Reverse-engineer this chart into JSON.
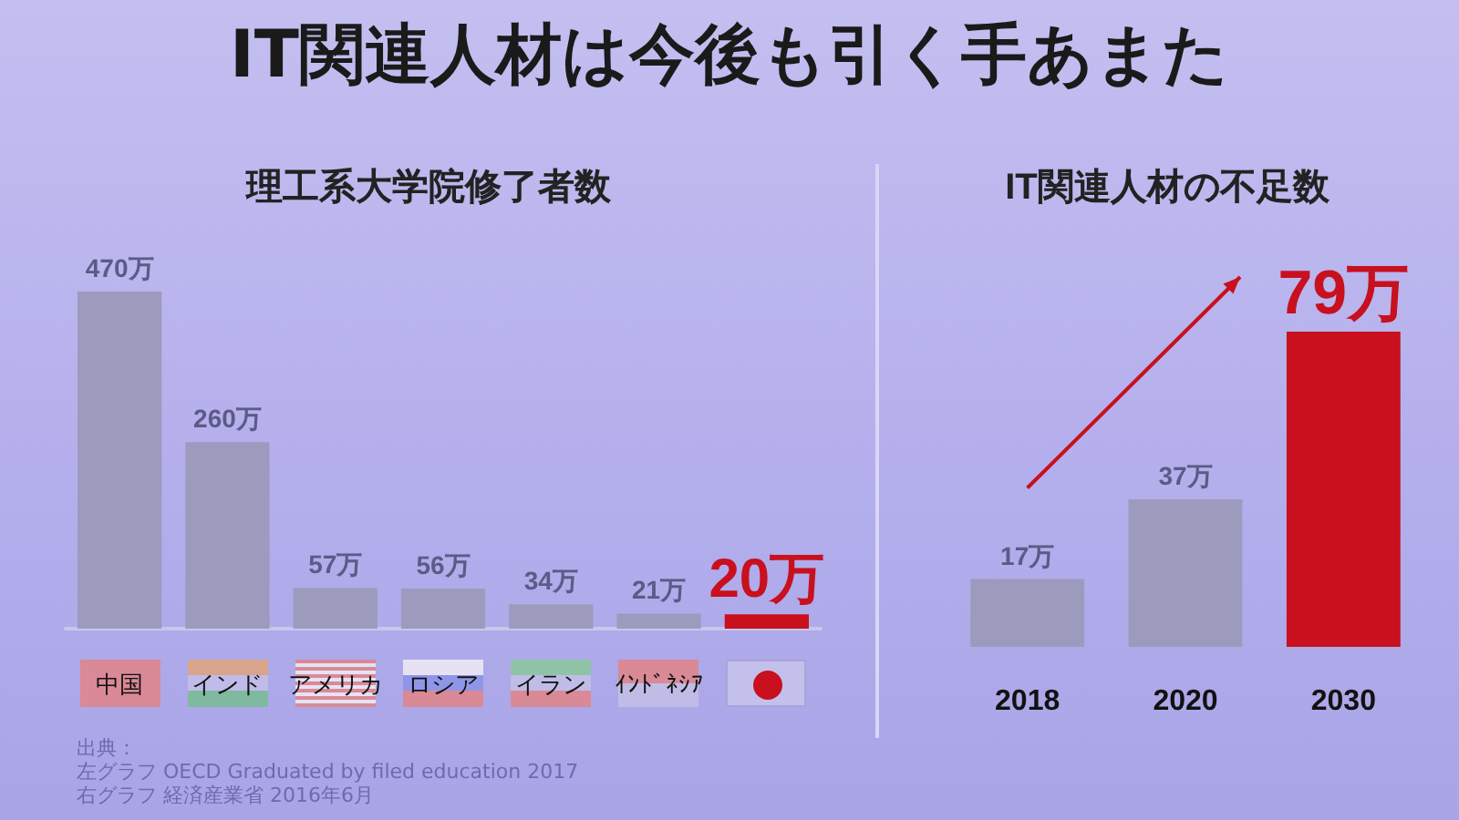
{
  "chart_data": [
    {
      "type": "bar",
      "title": "IT関連人材は今後も引く手あまた",
      "subtitle": "理工系大学院修了者数",
      "categories": [
        "中国",
        "インド",
        "アメリカ",
        "ロシア",
        "イラン",
        "ｲﾝﾄﾞﾈｼｱ",
        null
      ],
      "values": [
        470,
        260,
        57,
        56,
        34,
        21,
        20
      ],
      "colors": [
        "#9d9bbd",
        "#9d9bbd",
        "#9d9bbd",
        "#9d9bbd",
        "#9d9bbd",
        "#9d9bbd",
        "#c8101e"
      ],
      "value_labels": [
        "470万",
        "260万",
        "57万",
        "56万",
        "34万",
        "21万",
        "20万"
      ],
      "tick_labels": "x",
      "grid": false,
      "annotations": [
        "出典：",
        "左グラフ OECD Graduated by filed education  2017",
        "右グラフ  経済産業省  2016年6月"
      ]
    },
    {
      "type": "bar",
      "title": "IT関連人材の不足数",
      "categories": [
        "2018",
        "2020",
        "2030"
      ],
      "values": [
        17,
        37,
        79
      ],
      "colors": [
        "#9d9bbd",
        "#9d9bbd",
        "#c8101e"
      ],
      "value_labels": [
        "17万",
        "37万",
        "79万"
      ],
      "tick_labels": "x",
      "grid": false
    }
  ]
}
